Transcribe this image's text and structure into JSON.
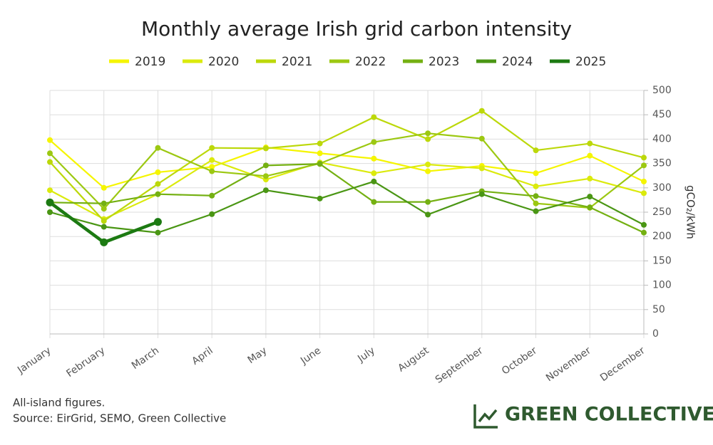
{
  "chart_data": {
    "type": "line",
    "title": "Monthly average Irish grid carbon intensity",
    "categories": [
      "January",
      "February",
      "March",
      "April",
      "May",
      "June",
      "July",
      "August",
      "September",
      "October",
      "November",
      "December"
    ],
    "series": [
      {
        "name": "2019",
        "color": "#f5f500",
        "values": [
          398,
          300,
          332,
          343,
          383,
          371,
          360,
          334,
          345,
          330,
          366,
          313
        ]
      },
      {
        "name": "2020",
        "color": "#dbea0c",
        "values": [
          295,
          236,
          287,
          357,
          317,
          352,
          330,
          348,
          340,
          303,
          319,
          289
        ]
      },
      {
        "name": "2021",
        "color": "#bcd80a",
        "values": [
          353,
          232,
          308,
          382,
          381,
          391,
          445,
          400,
          458,
          377,
          391,
          362
        ]
      },
      {
        "name": "2022",
        "color": "#9cc812",
        "values": [
          371,
          257,
          382,
          334,
          324,
          350,
          394,
          412,
          401,
          268,
          259,
          346
        ]
      },
      {
        "name": "2023",
        "color": "#74b012",
        "values": [
          270,
          268,
          287,
          284,
          346,
          349,
          271,
          271,
          293,
          283,
          260,
          208
        ]
      },
      {
        "name": "2024",
        "color": "#4a9614",
        "values": [
          250,
          220,
          208,
          246,
          295,
          278,
          313,
          245,
          287,
          252,
          282,
          224
        ]
      },
      {
        "name": "2025",
        "color": "#1c7a12",
        "values": [
          270,
          188,
          230,
          null,
          null,
          null,
          null,
          null,
          null,
          null,
          null,
          null
        ]
      }
    ],
    "ylim": [
      0,
      500
    ],
    "yticks": [
      0,
      50,
      100,
      150,
      200,
      250,
      300,
      350,
      400,
      450,
      500
    ],
    "y_label": "gCO₂/kWh",
    "y_axis_side": "right",
    "grid": true,
    "legend": "top"
  },
  "notes": [
    "All-island figures.",
    "Source: EirGrid, SEMO, Green Collective"
  ],
  "logo": "GREEN COLLECTIVE"
}
